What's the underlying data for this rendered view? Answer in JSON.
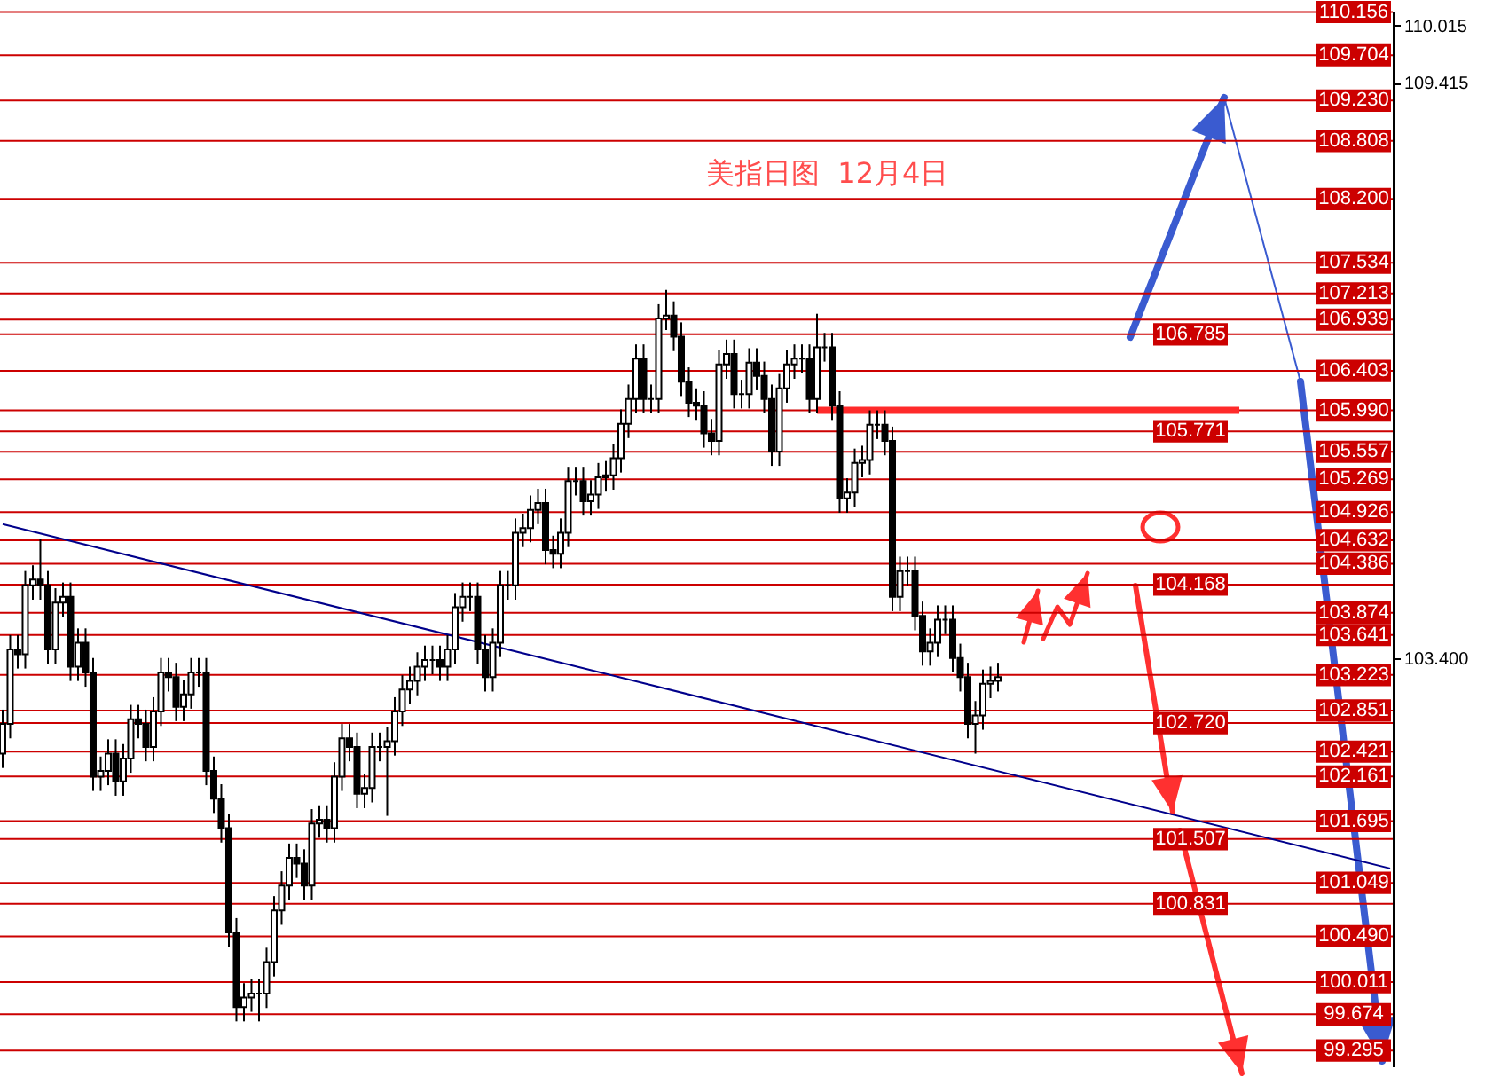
{
  "chart_data": {
    "type": "candlestick",
    "title": "美指日图  12月4日",
    "categories": [
      null,
      null,
      null,
      null,
      null,
      null,
      null,
      null,
      null,
      null,
      null,
      null,
      null,
      null,
      null,
      null,
      null,
      null,
      null,
      null,
      null,
      null,
      null,
      null,
      null,
      null,
      null,
      null,
      null,
      null,
      null,
      null,
      null,
      null,
      null,
      null,
      null,
      null,
      null,
      null,
      null,
      null,
      null,
      null,
      null,
      null,
      null,
      null,
      null,
      null,
      null,
      null,
      null,
      null,
      null,
      null,
      null,
      null,
      null,
      null,
      null,
      null,
      null,
      null,
      null,
      null,
      null,
      null,
      null,
      null,
      null,
      null,
      null,
      null,
      null,
      null,
      null,
      null,
      null,
      null,
      null,
      null,
      null,
      null,
      null,
      null,
      null,
      null,
      null,
      null,
      null,
      null,
      null,
      null,
      null,
      null,
      null,
      null,
      null,
      null,
      null,
      null,
      null,
      null,
      null,
      null,
      null,
      null,
      null,
      null,
      null,
      null,
      null,
      null,
      null,
      null,
      null,
      null,
      null,
      null,
      null,
      null,
      null,
      null,
      null,
      null,
      null,
      null,
      null,
      null,
      null,
      null,
      null,
      null,
      null,
      null,
      null,
      null,
      null,
      null,
      null,
      null,
      null,
      null,
      null,
      null,
      null,
      null,
      null,
      null,
      null,
      null,
      null,
      null,
      null,
      null,
      null,
      null,
      null,
      null,
      null,
      null,
      null,
      null,
      null,
      null,
      null,
      null,
      null,
      null,
      null,
      null,
      null,
      null,
      null,
      null,
      null,
      null,
      null,
      null,
      null,
      null,
      null,
      null,
      null
    ],
    "ohlc": [
      [
        102.4,
        102.86,
        102.25,
        102.71
      ],
      [
        102.71,
        103.64,
        102.56,
        103.49
      ],
      [
        103.49,
        103.64,
        103.29,
        103.44
      ],
      [
        103.44,
        104.31,
        103.29,
        104.16
      ],
      [
        104.16,
        104.37,
        104.01,
        104.22
      ],
      [
        104.22,
        104.65,
        104.01,
        104.16
      ],
      [
        104.16,
        104.31,
        103.34,
        103.49
      ],
      [
        103.49,
        104.13,
        103.34,
        103.98
      ],
      [
        103.98,
        104.19,
        103.83,
        104.04
      ],
      [
        104.04,
        104.19,
        103.16,
        103.31
      ],
      [
        103.31,
        103.71,
        103.16,
        103.56
      ],
      [
        103.56,
        103.71,
        103.1,
        103.25
      ],
      [
        103.25,
        103.4,
        102.01,
        102.16
      ],
      [
        102.16,
        102.37,
        102.01,
        102.22
      ],
      [
        102.22,
        102.55,
        102.07,
        102.4
      ],
      [
        102.4,
        102.55,
        101.96,
        102.11
      ],
      [
        102.11,
        102.5,
        101.96,
        102.35
      ],
      [
        102.35,
        102.91,
        102.2,
        102.76
      ],
      [
        102.76,
        102.91,
        102.56,
        102.71
      ],
      [
        102.71,
        102.86,
        102.32,
        102.47
      ],
      [
        102.47,
        102.99,
        102.32,
        102.84
      ],
      [
        102.84,
        103.4,
        102.69,
        103.25
      ],
      [
        103.25,
        103.4,
        103.05,
        103.2
      ],
      [
        103.2,
        103.35,
        102.74,
        102.89
      ],
      [
        102.89,
        103.17,
        102.74,
        103.02
      ],
      [
        103.02,
        103.4,
        102.87,
        103.25
      ],
      [
        103.25,
        103.4,
        103.1,
        103.25
      ],
      [
        103.25,
        103.4,
        102.07,
        102.22
      ],
      [
        102.22,
        102.37,
        101.78,
        101.93
      ],
      [
        101.93,
        102.08,
        101.47,
        101.62
      ],
      [
        101.62,
        101.77,
        100.38,
        100.53
      ],
      [
        100.53,
        100.68,
        99.6,
        99.75
      ],
      [
        99.75,
        100.0,
        99.6,
        99.85
      ],
      [
        99.85,
        100.04,
        99.7,
        99.89
      ],
      [
        99.89,
        100.04,
        99.6,
        99.89
      ],
      [
        99.89,
        100.37,
        99.74,
        100.22
      ],
      [
        100.22,
        100.91,
        100.07,
        100.76
      ],
      [
        100.76,
        101.17,
        100.61,
        101.02
      ],
      [
        101.02,
        101.46,
        100.87,
        101.31
      ],
      [
        101.31,
        101.46,
        101.1,
        101.25
      ],
      [
        101.25,
        101.4,
        100.87,
        101.02
      ],
      [
        101.02,
        101.82,
        100.87,
        101.67
      ],
      [
        101.67,
        101.86,
        101.52,
        101.71
      ],
      [
        101.71,
        101.86,
        101.47,
        101.62
      ],
      [
        101.62,
        102.31,
        101.47,
        102.16
      ],
      [
        102.16,
        102.71,
        102.01,
        102.56
      ],
      [
        102.56,
        102.71,
        102.32,
        102.47
      ],
      [
        102.47,
        102.62,
        101.83,
        101.98
      ],
      [
        101.98,
        102.19,
        101.83,
        102.04
      ],
      [
        102.04,
        102.62,
        101.89,
        102.47
      ],
      [
        102.47,
        102.62,
        102.32,
        102.47
      ],
      [
        102.47,
        102.68,
        101.75,
        102.53
      ],
      [
        102.53,
        102.99,
        102.38,
        102.84
      ],
      [
        102.84,
        103.22,
        102.69,
        103.07
      ],
      [
        103.07,
        103.31,
        102.92,
        103.16
      ],
      [
        103.16,
        103.46,
        103.01,
        103.31
      ],
      [
        103.31,
        103.53,
        103.16,
        103.38
      ],
      [
        103.38,
        103.53,
        103.23,
        103.38
      ],
      [
        103.38,
        103.53,
        103.16,
        103.31
      ],
      [
        103.31,
        103.64,
        103.16,
        103.49
      ],
      [
        103.49,
        104.08,
        103.34,
        103.93
      ],
      [
        103.93,
        104.19,
        103.78,
        104.04
      ],
      [
        104.04,
        104.19,
        103.89,
        104.04
      ],
      [
        104.04,
        104.19,
        103.34,
        103.49
      ],
      [
        103.49,
        103.64,
        103.05,
        103.2
      ],
      [
        103.2,
        103.71,
        103.05,
        103.56
      ],
      [
        103.56,
        104.31,
        103.41,
        104.16
      ],
      [
        104.16,
        104.31,
        104.01,
        104.16
      ],
      [
        104.16,
        104.86,
        104.01,
        104.71
      ],
      [
        104.71,
        104.91,
        104.56,
        104.76
      ],
      [
        104.76,
        105.1,
        104.61,
        104.95
      ],
      [
        104.95,
        105.17,
        104.8,
        105.02
      ],
      [
        105.02,
        105.17,
        104.38,
        104.53
      ],
      [
        104.53,
        104.68,
        104.34,
        104.49
      ],
      [
        104.49,
        104.86,
        104.34,
        104.71
      ],
      [
        104.71,
        105.4,
        104.56,
        105.25
      ],
      [
        105.25,
        105.4,
        105.1,
        105.25
      ],
      [
        105.25,
        105.4,
        104.89,
        105.04
      ],
      [
        105.04,
        105.26,
        104.89,
        105.11
      ],
      [
        105.11,
        105.44,
        104.96,
        105.29
      ],
      [
        105.29,
        105.46,
        105.14,
        105.31
      ],
      [
        105.31,
        105.64,
        105.16,
        105.49
      ],
      [
        105.49,
        106.0,
        105.34,
        105.85
      ],
      [
        105.85,
        106.26,
        105.7,
        106.11
      ],
      [
        106.11,
        106.68,
        105.96,
        106.53
      ],
      [
        106.53,
        106.68,
        105.96,
        106.11
      ],
      [
        106.11,
        106.26,
        105.96,
        106.11
      ],
      [
        106.11,
        107.1,
        105.96,
        106.95
      ],
      [
        106.95,
        107.25,
        106.83,
        106.98
      ],
      [
        106.98,
        107.13,
        106.61,
        106.76
      ],
      [
        106.76,
        106.91,
        106.14,
        106.29
      ],
      [
        106.29,
        106.44,
        105.92,
        106.07
      ],
      [
        106.07,
        106.22,
        105.89,
        106.04
      ],
      [
        106.04,
        106.19,
        105.6,
        105.75
      ],
      [
        105.75,
        105.9,
        105.52,
        105.67
      ],
      [
        105.67,
        106.62,
        105.52,
        106.47
      ],
      [
        106.47,
        106.73,
        106.32,
        106.58
      ],
      [
        106.58,
        106.73,
        106.01,
        106.16
      ],
      [
        106.16,
        106.31,
        106.01,
        106.16
      ],
      [
        106.16,
        106.64,
        106.01,
        106.49
      ],
      [
        106.49,
        106.64,
        106.2,
        106.35
      ],
      [
        106.35,
        106.5,
        105.96,
        106.11
      ],
      [
        106.11,
        106.26,
        105.41,
        105.56
      ],
      [
        105.56,
        106.37,
        105.41,
        106.22
      ],
      [
        106.22,
        106.62,
        106.07,
        106.47
      ],
      [
        106.47,
        106.68,
        106.32,
        106.53
      ],
      [
        106.53,
        106.68,
        106.38,
        106.53
      ],
      [
        106.53,
        106.68,
        105.96,
        106.11
      ],
      [
        106.11,
        107.0,
        105.96,
        106.65
      ],
      [
        106.65,
        106.8,
        106.5,
        106.65
      ],
      [
        106.65,
        106.8,
        105.89,
        106.04
      ],
      [
        106.04,
        106.19,
        104.92,
        105.07
      ],
      [
        105.07,
        105.28,
        104.92,
        105.13
      ],
      [
        105.13,
        105.59,
        104.98,
        105.44
      ],
      [
        105.44,
        105.62,
        105.29,
        105.47
      ],
      [
        105.47,
        105.99,
        105.32,
        105.84
      ],
      [
        105.84,
        105.99,
        105.69,
        105.84
      ],
      [
        105.84,
        105.99,
        105.52,
        105.67
      ],
      [
        105.67,
        105.82,
        103.89,
        104.04
      ],
      [
        104.04,
        104.46,
        103.89,
        104.31
      ],
      [
        104.31,
        104.46,
        104.16,
        104.31
      ],
      [
        104.31,
        104.46,
        103.69,
        103.84
      ],
      [
        103.84,
        103.99,
        103.32,
        103.47
      ],
      [
        103.47,
        103.71,
        103.32,
        103.56
      ],
      [
        103.56,
        103.95,
        103.41,
        103.8
      ],
      [
        103.8,
        103.95,
        103.65,
        103.8
      ],
      [
        103.8,
        103.95,
        103.25,
        103.4
      ],
      [
        103.4,
        103.55,
        103.05,
        103.2
      ],
      [
        103.2,
        103.35,
        102.56,
        102.71
      ],
      [
        102.71,
        102.95,
        102.4,
        102.8
      ],
      [
        102.8,
        103.28,
        102.65,
        103.13
      ],
      [
        103.13,
        103.31,
        102.98,
        103.16
      ],
      [
        103.16,
        103.35,
        103.05,
        103.2
      ],
      null,
      null,
      null,
      null,
      null,
      null,
      null,
      null,
      null,
      null,
      null,
      null,
      null,
      null,
      null,
      null,
      null,
      null,
      null,
      null,
      null,
      null,
      null,
      null,
      null,
      null,
      null,
      null,
      null,
      null,
      null,
      null,
      null,
      null,
      null,
      null,
      null,
      null,
      null,
      null,
      null,
      null,
      null,
      null,
      null,
      null,
      null,
      null,
      null,
      null,
      null,
      null
    ],
    "series": [
      {
        "type": "line",
        "color": "#00008b",
        "values": [
          104.8,
          null,
          null,
          null,
          null,
          null,
          null,
          null,
          null,
          null,
          null,
          null,
          null,
          null,
          null,
          null,
          null,
          null,
          null,
          null,
          null,
          null,
          null,
          null,
          null,
          null,
          null,
          null,
          null,
          null,
          null,
          null,
          null,
          null,
          null,
          null,
          null,
          null,
          null,
          null,
          null,
          null,
          null,
          null,
          null,
          null,
          null,
          null,
          null,
          null,
          null,
          null,
          null,
          null,
          null,
          null,
          null,
          null,
          null,
          null,
          null,
          null,
          null,
          null,
          null,
          null,
          null,
          null,
          null,
          null,
          null,
          null,
          null,
          null,
          null,
          null,
          null,
          null,
          null,
          null,
          null,
          null,
          null,
          null,
          null,
          null,
          null,
          null,
          null,
          null,
          null,
          null,
          null,
          null,
          null,
          null,
          null,
          null,
          null,
          null,
          null,
          null,
          null,
          null,
          null,
          null,
          null,
          null,
          null,
          null,
          null,
          null,
          null,
          null,
          null,
          null,
          null,
          null,
          null,
          null,
          null,
          null,
          null,
          null,
          null,
          null,
          null,
          null,
          null,
          null,
          null,
          null,
          null,
          null,
          null,
          null,
          null,
          null,
          null,
          null,
          null,
          null,
          null,
          null,
          null,
          null,
          null,
          null,
          null,
          null,
          null,
          null,
          null,
          null,
          null,
          null,
          null,
          null,
          null,
          null,
          null,
          null,
          null,
          null,
          null,
          null,
          null,
          null,
          null,
          null,
          null,
          null,
          null,
          null,
          null,
          null,
          null,
          null,
          null,
          null,
          null,
          null,
          null,
          null,
          101.2
        ]
      },
      {
        "type": "line",
        "color": "#ff2a2a",
        "values": [
          null,
          null,
          null,
          null,
          null,
          null,
          null,
          null,
          null,
          null,
          null,
          null,
          null,
          null,
          null,
          null,
          null,
          null,
          null,
          null,
          null,
          null,
          null,
          null,
          null,
          null,
          null,
          null,
          null,
          null,
          null,
          null,
          null,
          null,
          null,
          null,
          null,
          null,
          null,
          null,
          null,
          null,
          null,
          null,
          null,
          null,
          null,
          null,
          null,
          null,
          null,
          null,
          null,
          null,
          null,
          null,
          null,
          null,
          null,
          null,
          null,
          null,
          null,
          null,
          null,
          null,
          null,
          null,
          null,
          null,
          null,
          null,
          null,
          null,
          null,
          null,
          null,
          null,
          null,
          null,
          null,
          null,
          null,
          null,
          null,
          null,
          null,
          null,
          null,
          null,
          null,
          null,
          null,
          null,
          null,
          null,
          null,
          null,
          null,
          null,
          null,
          null,
          null,
          null,
          null,
          null,
          null,
          null,
          105.99,
          null,
          null,
          null,
          null,
          null,
          null,
          null,
          null,
          null,
          null,
          null,
          null,
          null,
          null,
          null,
          null,
          null,
          null,
          null,
          null,
          null,
          null,
          null,
          null,
          null,
          null,
          null,
          null,
          null,
          null,
          null,
          null,
          null,
          null,
          null,
          null,
          null,
          null,
          null,
          null,
          null,
          null,
          null,
          null,
          null,
          null,
          null,
          null,
          null,
          null,
          null,
          null,
          null,
          null,
          null,
          105.99,
          null,
          null,
          null,
          null,
          null,
          null,
          null,
          null,
          null,
          null,
          null,
          null,
          null,
          null,
          null,
          null,
          null,
          null,
          null,
          null
        ]
      }
    ],
    "ylim": [
      99.13,
      110.17
    ],
    "yticks": [
      110.015,
      109.415,
      {
        "value": 103.4,
        "label": "103.400"
      }
    ],
    "tick_labels": "y",
    "ref_lines": [
      {
        "axis": "y",
        "value": 110.156,
        "label": "110.156",
        "color": "#cc0000"
      },
      {
        "axis": "y",
        "value": 109.704,
        "label": "109.704",
        "color": "#cc0000"
      },
      {
        "axis": "y",
        "value": 109.23,
        "label": "109.230",
        "color": "#cc0000"
      },
      {
        "axis": "y",
        "value": 108.808,
        "label": "108.808",
        "color": "#cc0000"
      },
      {
        "axis": "y",
        "value": 108.2,
        "label": "108.200",
        "color": "#cc0000"
      },
      {
        "axis": "y",
        "value": 107.534,
        "label": "107.534",
        "color": "#cc0000"
      },
      {
        "axis": "y",
        "value": 107.213,
        "label": "107.213",
        "color": "#cc0000"
      },
      {
        "axis": "y",
        "value": 106.939,
        "label": "106.939",
        "color": "#cc0000"
      },
      {
        "axis": "y",
        "value": 106.785,
        "label": "106.785",
        "color": "#cc0000"
      },
      {
        "axis": "y",
        "value": 106.403,
        "label": "106.403",
        "color": "#cc0000"
      },
      {
        "axis": "y",
        "value": 105.99,
        "label": "105.990",
        "color": "#cc0000"
      },
      {
        "axis": "y",
        "value": 105.771,
        "label": "105.771",
        "color": "#cc0000"
      },
      {
        "axis": "y",
        "value": 105.557,
        "label": "105.557",
        "color": "#cc0000"
      },
      {
        "axis": "y",
        "value": 105.269,
        "label": "105.269",
        "color": "#cc0000"
      },
      {
        "axis": "y",
        "value": 104.926,
        "label": "104.926",
        "color": "#cc0000"
      },
      {
        "axis": "y",
        "value": 104.632,
        "label": "104.632",
        "color": "#cc0000"
      },
      {
        "axis": "y",
        "value": 104.386,
        "label": "104.386",
        "color": "#cc0000"
      },
      {
        "axis": "y",
        "value": 104.168,
        "label": "104.168",
        "color": "#cc0000"
      },
      {
        "axis": "y",
        "value": 103.874,
        "label": "103.874",
        "color": "#cc0000"
      },
      {
        "axis": "y",
        "value": 103.641,
        "label": "103.641",
        "color": "#cc0000"
      },
      {
        "axis": "y",
        "value": 103.223,
        "label": "103.223",
        "color": "#cc0000"
      },
      {
        "axis": "y",
        "value": 102.851,
        "label": "102.851",
        "color": "#cc0000"
      },
      {
        "axis": "y",
        "value": 102.72,
        "label": "102.720",
        "color": "#cc0000"
      },
      {
        "axis": "y",
        "value": 102.421,
        "label": "102.421",
        "color": "#cc0000"
      },
      {
        "axis": "y",
        "value": 102.161,
        "label": "102.161",
        "color": "#cc0000"
      },
      {
        "axis": "y",
        "value": 101.695,
        "label": "101.695",
        "color": "#cc0000"
      },
      {
        "axis": "y",
        "value": 101.507,
        "label": "101.507",
        "color": "#cc0000"
      },
      {
        "axis": "y",
        "value": 101.049,
        "label": "101.049",
        "color": "#cc0000"
      },
      {
        "axis": "y",
        "value": 100.831,
        "label": "100.831",
        "color": "#cc0000"
      },
      {
        "axis": "y",
        "value": 100.49,
        "label": "100.490",
        "color": "#cc0000"
      },
      {
        "axis": "y",
        "value": 100.011,
        "label": "100.011",
        "color": "#cc0000"
      },
      {
        "axis": "y",
        "value": 99.674,
        "label": "99.674",
        "color": "#cc0000"
      },
      {
        "axis": "y",
        "value": 99.295,
        "label": "99.295",
        "color": "#cc0000"
      }
    ]
  }
}
